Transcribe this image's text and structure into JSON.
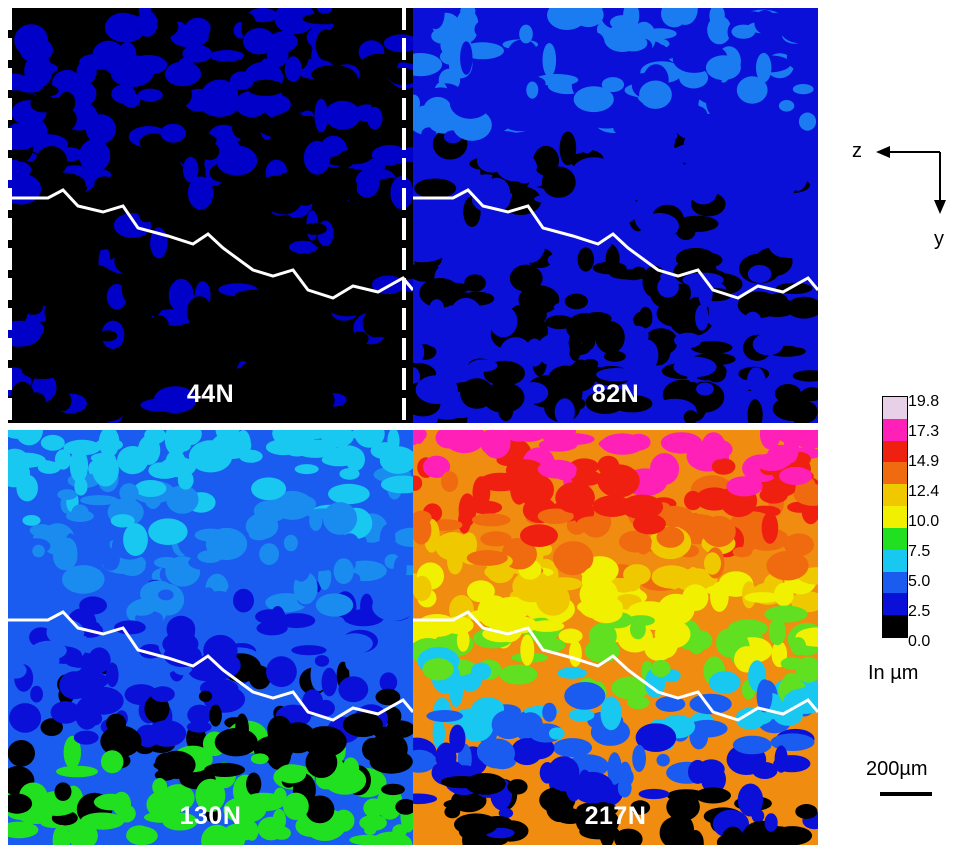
{
  "panels": [
    {
      "label": "44N",
      "base": "#000000",
      "colors": [
        "#000000",
        "#0000c8"
      ],
      "bias": 0.25
    },
    {
      "label": "82N",
      "base": "#0a10d8",
      "colors": [
        "#0a10d8",
        "#0000c8",
        "#000000",
        "#1a7cf0"
      ],
      "bias": 0.5
    },
    {
      "label": "130N",
      "base": "#1a5cf0",
      "colors": [
        "#18c8f0",
        "#1a8cf0",
        "#1a5cf0",
        "#0a10d8",
        "#000000",
        "#20e020"
      ],
      "bias": 0.5
    },
    {
      "label": "217N",
      "base": "#f08c10",
      "colors": [
        "#ff20b8",
        "#f02010",
        "#f06a10",
        "#f0c800",
        "#f0f000",
        "#60e020",
        "#18c8f0",
        "#1a5cf0",
        "#0a10d8",
        "#000000"
      ],
      "bias": 0.5
    }
  ],
  "axes": {
    "z_label": "z",
    "y_label": "y"
  },
  "colorbar": {
    "ticks": [
      "19.8",
      "17.3",
      "14.9",
      "12.4",
      "10.0",
      "7.5",
      "5.0",
      "2.5",
      "0.0"
    ],
    "colors": [
      "#e8d0e8",
      "#ff20b8",
      "#f02010",
      "#f06a10",
      "#f0c800",
      "#f0f000",
      "#20e020",
      "#18c8f0",
      "#1a5cf0",
      "#0a10d8",
      "#000000"
    ],
    "unit_label": "In µm"
  },
  "scale_bar": {
    "label": "200µm"
  }
}
